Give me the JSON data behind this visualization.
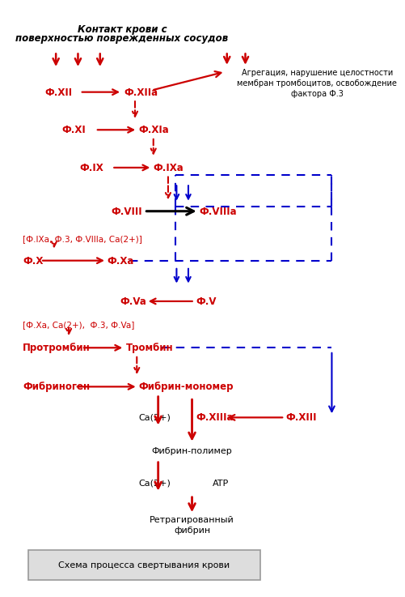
{
  "bg_color": "#ffffff",
  "red": "#cc0000",
  "blue": "#0000cc",
  "black": "#000000",
  "title": "Схема процесса свертывания крови",
  "top_title_line1": "Контакт крови с",
  "top_title_line2": "поверхностью поврежденных сосудов",
  "agg_text": "Агрегация, нарушение целостности\nмембран тромбоцитов, освобождение\nфактора Ф.3",
  "label_F12": "Ф.XII",
  "label_F12a": "Ф.XIIa",
  "label_F11": "Ф.XI",
  "label_F11a": "Ф.XIa",
  "label_F9": "Ф.IX",
  "label_F9a": "Ф.IXa",
  "label_F8": "Ф.VIII",
  "label_F8a": "Ф.VIIIa",
  "label_bracket1": "[Ф.IXa, Ф.3, Ф.VIIIa, Ca(2+)]",
  "label_FX": "Ф.X",
  "label_FXa": "Ф.Xa",
  "label_FVa": "Ф.Va",
  "label_FV": "Ф.V",
  "label_bracket2": "[Ф.Xa, Ca(2+),  Ф.3, Ф.Va]",
  "label_prot": "Протромбин",
  "label_throm": "Тромбин",
  "label_fibr": "Фибриноген",
  "label_fibr_mono": "Фибрин-мономер",
  "label_ca1": "Ca(2+)",
  "label_F13a": "Ф.XIIIa",
  "label_F13": "Ф.XIII",
  "label_fibr_poly": "Фибрин-полимер",
  "label_ca2": "Ca(2+)",
  "label_atp": "ATP",
  "label_retract": "Ретрагированный\nфибрин"
}
